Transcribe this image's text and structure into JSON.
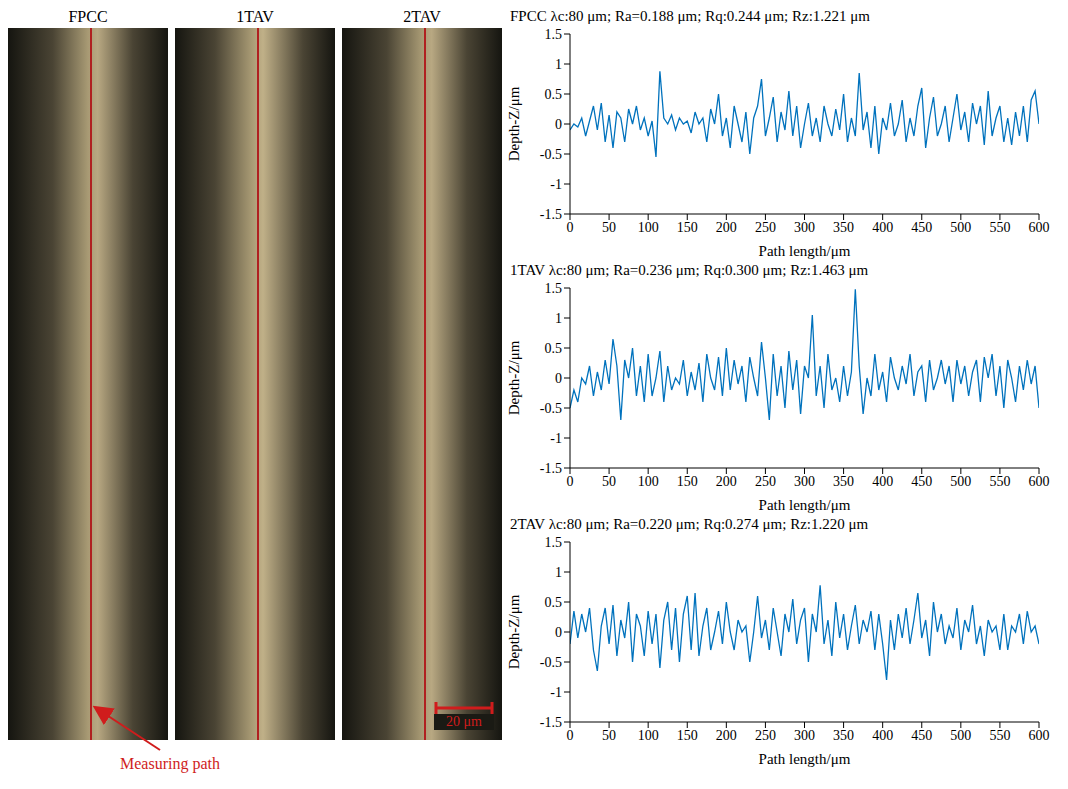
{
  "image_panels": {
    "labels": [
      "FPCC",
      "1TAV",
      "2TAV"
    ],
    "annotation": "Measuring path",
    "scale_bar": "20 μm"
  },
  "chart_data": [
    {
      "type": "line",
      "title": "FPCC λc:80 μm; Ra=0.188 μm; Rq:0.244 μm; Rz:1.221 μm",
      "x_label": "Path length/μm",
      "y_label": "Depth-Z/μm",
      "color": "#0072bd",
      "grid": false,
      "xlim": [
        0,
        600
      ],
      "xticks": [
        0,
        50,
        100,
        150,
        200,
        250,
        300,
        350,
        400,
        450,
        500,
        550,
        600
      ],
      "ylim": [
        -1.5,
        1.5
      ],
      "yticks": [
        -1.5,
        -1,
        -0.5,
        0,
        0.5,
        1,
        1.5
      ],
      "x": [
        0,
        5,
        10,
        15,
        20,
        25,
        30,
        35,
        40,
        45,
        50,
        55,
        60,
        65,
        70,
        75,
        80,
        85,
        90,
        95,
        100,
        105,
        110,
        115,
        120,
        125,
        130,
        135,
        140,
        145,
        150,
        155,
        160,
        165,
        170,
        175,
        180,
        185,
        190,
        195,
        200,
        205,
        210,
        215,
        220,
        225,
        230,
        235,
        240,
        245,
        250,
        255,
        260,
        265,
        270,
        275,
        280,
        285,
        290,
        295,
        300,
        305,
        310,
        315,
        320,
        325,
        330,
        335,
        340,
        345,
        350,
        355,
        360,
        365,
        370,
        375,
        380,
        385,
        390,
        395,
        400,
        405,
        410,
        415,
        420,
        425,
        430,
        435,
        440,
        445,
        450,
        455,
        460,
        465,
        470,
        475,
        480,
        485,
        490,
        495,
        500,
        505,
        510,
        515,
        520,
        525,
        530,
        535,
        540,
        545,
        550,
        555,
        560,
        565,
        570,
        575,
        580,
        585,
        590,
        595,
        600
      ],
      "values": [
        -0.1,
        0.0,
        -0.05,
        0.1,
        -0.2,
        0.05,
        0.3,
        -0.1,
        0.35,
        -0.3,
        0.15,
        -0.4,
        0.2,
        0.1,
        -0.3,
        0.25,
        0.0,
        0.3,
        -0.1,
        0.1,
        -0.2,
        0.05,
        -0.55,
        0.88,
        0.1,
        0.0,
        0.15,
        -0.1,
        0.1,
        0.0,
        0.05,
        -0.15,
        0.2,
        0.0,
        0.1,
        -0.3,
        0.25,
        0.0,
        0.5,
        -0.2,
        0.1,
        -0.4,
        0.3,
        0.0,
        -0.3,
        0.2,
        -0.5,
        0.1,
        0.3,
        0.75,
        -0.2,
        0.1,
        0.45,
        -0.3,
        0.2,
        -0.1,
        0.55,
        -0.2,
        0.3,
        -0.4,
        0.0,
        0.35,
        -0.2,
        0.1,
        -0.3,
        0.3,
        0.0,
        -0.2,
        0.25,
        -0.1,
        0.5,
        -0.3,
        0.1,
        -0.2,
        0.85,
        -0.1,
        0.2,
        -0.4,
        0.3,
        -0.5,
        0.1,
        -0.1,
        0.35,
        -0.2,
        0.0,
        0.4,
        -0.3,
        0.1,
        -0.2,
        0.3,
        0.6,
        -0.4,
        0.1,
        0.45,
        -0.2,
        0.0,
        0.3,
        -0.3,
        0.1,
        0.5,
        -0.1,
        0.2,
        -0.3,
        0.35,
        0.0,
        0.3,
        -0.35,
        0.55,
        -0.2,
        0.1,
        0.3,
        -0.3,
        0.1,
        -0.35,
        0.2,
        -0.2,
        0.3,
        -0.3,
        0.4,
        0.55,
        0.0
      ]
    },
    {
      "type": "line",
      "title": "1TAV λc:80 μm; Ra=0.236 μm; Rq:0.300 μm; Rz:1.463 μm",
      "x_label": "Path length/μm",
      "y_label": "Depth-Z/μm",
      "color": "#0072bd",
      "grid": false,
      "xlim": [
        0,
        600
      ],
      "xticks": [
        0,
        50,
        100,
        150,
        200,
        250,
        300,
        350,
        400,
        450,
        500,
        550,
        600
      ],
      "ylim": [
        -1.5,
        1.5
      ],
      "yticks": [
        -1.5,
        -1,
        -0.5,
        0,
        0.5,
        1,
        1.5
      ],
      "x": [
        0,
        5,
        10,
        15,
        20,
        25,
        30,
        35,
        40,
        45,
        50,
        55,
        60,
        65,
        70,
        75,
        80,
        85,
        90,
        95,
        100,
        105,
        110,
        115,
        120,
        125,
        130,
        135,
        140,
        145,
        150,
        155,
        160,
        165,
        170,
        175,
        180,
        185,
        190,
        195,
        200,
        205,
        210,
        215,
        220,
        225,
        230,
        235,
        240,
        245,
        250,
        255,
        260,
        265,
        270,
        275,
        280,
        285,
        290,
        295,
        300,
        305,
        310,
        315,
        320,
        325,
        330,
        335,
        340,
        345,
        350,
        355,
        360,
        365,
        370,
        375,
        380,
        385,
        390,
        395,
        400,
        405,
        410,
        415,
        420,
        425,
        430,
        435,
        440,
        445,
        450,
        455,
        460,
        465,
        470,
        475,
        480,
        485,
        490,
        495,
        500,
        505,
        510,
        515,
        520,
        525,
        530,
        535,
        540,
        545,
        550,
        555,
        560,
        565,
        570,
        575,
        580,
        585,
        590,
        595,
        600
      ],
      "values": [
        -0.5,
        -0.2,
        -0.4,
        0.0,
        -0.1,
        0.2,
        -0.3,
        0.1,
        -0.2,
        0.3,
        -0.1,
        0.65,
        0.2,
        -0.7,
        0.3,
        0.0,
        0.5,
        -0.3,
        0.2,
        -0.4,
        0.4,
        -0.3,
        0.0,
        0.45,
        -0.4,
        0.2,
        -0.2,
        0.0,
        -0.1,
        0.3,
        -0.3,
        0.1,
        -0.2,
        0.25,
        -0.4,
        0.4,
        0.0,
        -0.2,
        0.35,
        -0.3,
        0.5,
        -0.2,
        0.3,
        -0.1,
        0.2,
        -0.4,
        0.35,
        0.0,
        -0.3,
        0.6,
        0.0,
        -0.7,
        0.4,
        -0.3,
        0.2,
        -0.5,
        0.45,
        -0.2,
        0.3,
        -0.6,
        0.2,
        0.0,
        1.05,
        -0.3,
        0.2,
        -0.5,
        0.4,
        -0.2,
        0.0,
        -0.4,
        0.2,
        -0.3,
        0.1,
        1.48,
        0.2,
        -0.6,
        0.0,
        -0.3,
        0.4,
        -0.2,
        0.1,
        -0.4,
        0.35,
        0.0,
        -0.2,
        0.2,
        -0.1,
        0.4,
        -0.3,
        0.1,
        0.2,
        -0.4,
        0.3,
        -0.2,
        0.0,
        0.3,
        -0.1,
        0.2,
        -0.4,
        0.3,
        -0.1,
        0.2,
        -0.3,
        0.1,
        0.3,
        -0.4,
        0.35,
        0.0,
        0.4,
        -0.3,
        0.2,
        -0.5,
        0.3,
        0.0,
        -0.4,
        0.2,
        -0.2,
        0.3,
        -0.1,
        0.2,
        -0.5
      ]
    },
    {
      "type": "line",
      "title": "2TAV λc:80 μm; Ra=0.220 μm; Rq:0.274 μm; Rz:1.220 μm",
      "x_label": "Path length/μm",
      "y_label": "Depth-Z/μm",
      "color": "#0072bd",
      "grid": false,
      "xlim": [
        0,
        600
      ],
      "xticks": [
        0,
        50,
        100,
        150,
        200,
        250,
        300,
        350,
        400,
        450,
        500,
        550,
        600
      ],
      "ylim": [
        -1.5,
        1.5
      ],
      "yticks": [
        -1.5,
        -1,
        -0.5,
        0,
        0.5,
        1,
        1.5
      ],
      "x": [
        0,
        5,
        10,
        15,
        20,
        25,
        30,
        35,
        40,
        45,
        50,
        55,
        60,
        65,
        70,
        75,
        80,
        85,
        90,
        95,
        100,
        105,
        110,
        115,
        120,
        125,
        130,
        135,
        140,
        145,
        150,
        155,
        160,
        165,
        170,
        175,
        180,
        185,
        190,
        195,
        200,
        205,
        210,
        215,
        220,
        225,
        230,
        235,
        240,
        245,
        250,
        255,
        260,
        265,
        270,
        275,
        280,
        285,
        290,
        295,
        300,
        305,
        310,
        315,
        320,
        325,
        330,
        335,
        340,
        345,
        350,
        355,
        360,
        365,
        370,
        375,
        380,
        385,
        390,
        395,
        400,
        405,
        410,
        415,
        420,
        425,
        430,
        435,
        440,
        445,
        450,
        455,
        460,
        465,
        470,
        475,
        480,
        485,
        490,
        495,
        500,
        505,
        510,
        515,
        520,
        525,
        530,
        535,
        540,
        545,
        550,
        555,
        560,
        565,
        570,
        575,
        580,
        585,
        590,
        595,
        600
      ],
      "values": [
        -0.2,
        0.35,
        -0.1,
        0.3,
        0.0,
        0.4,
        -0.3,
        -0.65,
        0.1,
        0.4,
        -0.2,
        0.45,
        -0.4,
        0.2,
        -0.1,
        0.5,
        -0.5,
        0.3,
        0.1,
        -0.4,
        0.35,
        -0.2,
        0.3,
        -0.6,
        0.2,
        0.5,
        -0.3,
        0.4,
        -0.5,
        0.3,
        0.6,
        -0.3,
        0.65,
        -0.4,
        0.1,
        0.4,
        -0.3,
        0.0,
        0.35,
        -0.2,
        0.5,
        0.0,
        -0.3,
        0.2,
        0.0,
        0.1,
        -0.5,
        0.0,
        0.6,
        -0.1,
        0.2,
        -0.3,
        0.4,
        0.0,
        -0.4,
        0.3,
        0.0,
        0.55,
        -0.2,
        0.2,
        0.4,
        -0.5,
        0.3,
        0.0,
        0.78,
        -0.2,
        0.2,
        -0.4,
        0.5,
        -0.1,
        0.3,
        -0.3,
        0.1,
        0.45,
        -0.2,
        0.2,
        0.0,
        0.35,
        -0.3,
        0.3,
        -0.2,
        -0.8,
        0.2,
        -0.3,
        0.3,
        -0.1,
        0.4,
        -0.2,
        0.2,
        0.65,
        -0.1,
        0.2,
        -0.4,
        0.5,
        0.0,
        0.3,
        -0.2,
        0.1,
        -0.1,
        0.4,
        -0.3,
        0.2,
        0.0,
        0.45,
        -0.2,
        0.1,
        -0.4,
        0.2,
        0.0,
        0.1,
        -0.3,
        0.3,
        -0.3,
        0.1,
        0.0,
        0.3,
        -0.2,
        0.35,
        0.0,
        0.1,
        -0.2
      ]
    }
  ]
}
